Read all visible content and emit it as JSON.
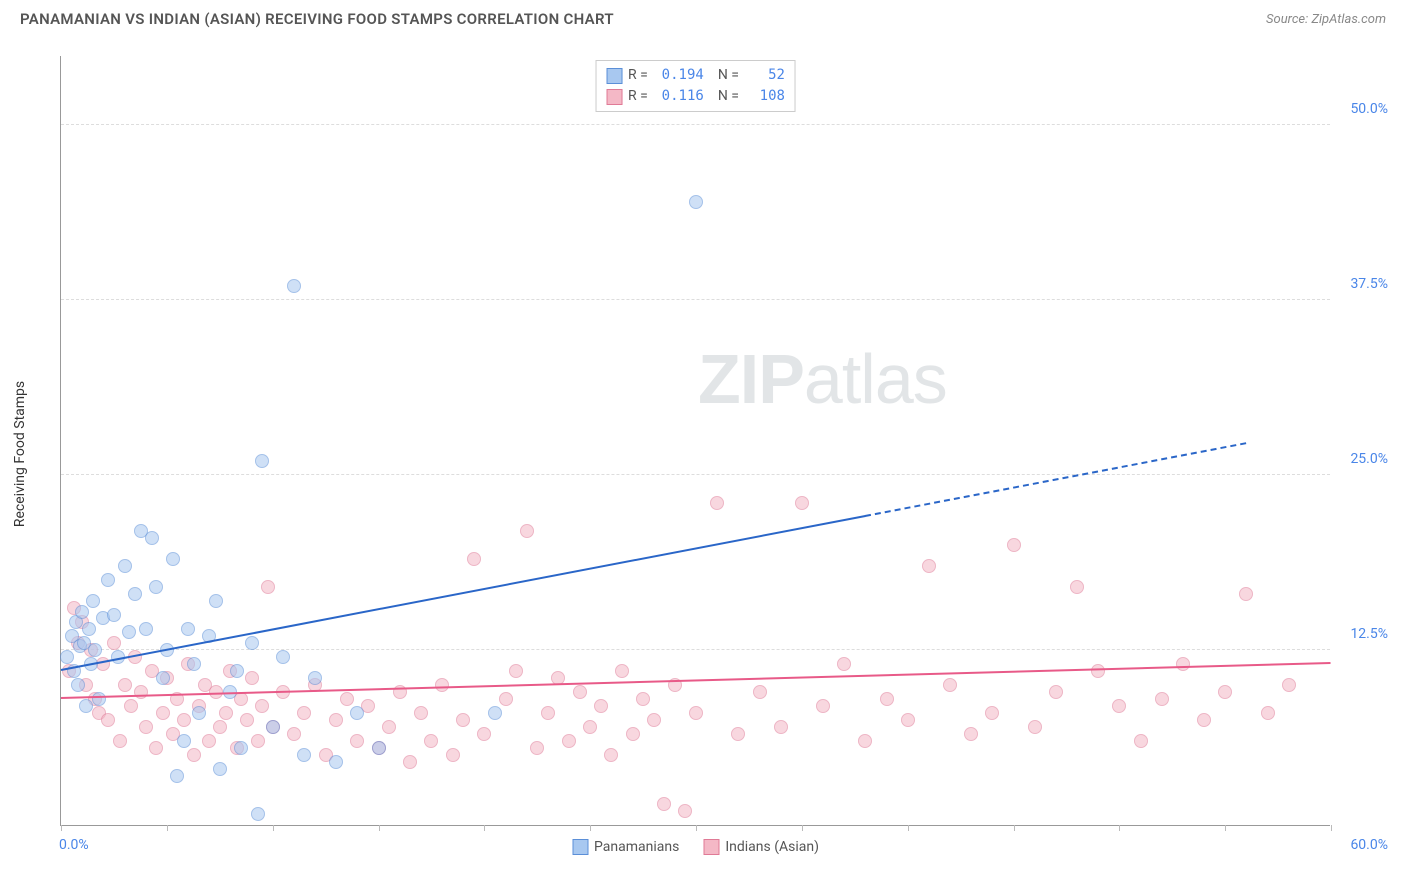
{
  "header": {
    "title": "PANAMANIAN VS INDIAN (ASIAN) RECEIVING FOOD STAMPS CORRELATION CHART",
    "source_prefix": "Source: ",
    "source_name": "ZipAtlas.com"
  },
  "chart": {
    "type": "scatter",
    "ylabel": "Receiving Food Stamps",
    "xlim": [
      0,
      60
    ],
    "ylim": [
      0,
      55
    ],
    "x_ticks": [
      0,
      5,
      10,
      15,
      20,
      25,
      30,
      35,
      40,
      45,
      50,
      55,
      60
    ],
    "y_grid": [
      12.5,
      25.0,
      37.5,
      50.0
    ],
    "y_tick_labels": [
      "12.5%",
      "25.0%",
      "37.5%",
      "50.0%"
    ],
    "x_origin_label": "0.0%",
    "x_max_label": "60.0%",
    "background_color": "#ffffff",
    "grid_color": "#dddddd",
    "axis_color": "#999999",
    "tick_label_color": "#4a86e8",
    "point_radius": 7,
    "point_opacity": 0.55,
    "watermark": {
      "z": "ZIP",
      "rest": "atlas",
      "color": "rgba(140,150,160,0.25)"
    },
    "series": [
      {
        "name": "Panamanians",
        "fill": "#a8c8f0",
        "stroke": "#5b8fd8",
        "trend_color": "#2a66c8",
        "R": "0.194",
        "N": "52",
        "trend": {
          "x1": 0,
          "y1": 11.0,
          "x2": 38,
          "y2": 22.0
        },
        "trend_ext": {
          "x1": 38,
          "y1": 22.0,
          "x2": 56,
          "y2": 27.2
        },
        "points": [
          [
            0.3,
            12.0
          ],
          [
            0.5,
            13.5
          ],
          [
            0.6,
            11.0
          ],
          [
            0.7,
            14.5
          ],
          [
            0.8,
            10.0
          ],
          [
            0.9,
            12.8
          ],
          [
            1.0,
            15.2
          ],
          [
            1.1,
            13.0
          ],
          [
            1.2,
            8.5
          ],
          [
            1.3,
            14.0
          ],
          [
            1.4,
            11.5
          ],
          [
            1.5,
            16.0
          ],
          [
            1.6,
            12.5
          ],
          [
            1.8,
            9.0
          ],
          [
            2.0,
            14.8
          ],
          [
            2.2,
            17.5
          ],
          [
            2.5,
            15.0
          ],
          [
            2.7,
            12.0
          ],
          [
            3.0,
            18.5
          ],
          [
            3.2,
            13.8
          ],
          [
            3.5,
            16.5
          ],
          [
            3.8,
            21.0
          ],
          [
            4.0,
            14.0
          ],
          [
            4.3,
            20.5
          ],
          [
            4.5,
            17.0
          ],
          [
            4.8,
            10.5
          ],
          [
            5.0,
            12.5
          ],
          [
            5.3,
            19.0
          ],
          [
            5.5,
            3.5
          ],
          [
            5.8,
            6.0
          ],
          [
            6.0,
            14.0
          ],
          [
            6.3,
            11.5
          ],
          [
            6.5,
            8.0
          ],
          [
            7.0,
            13.5
          ],
          [
            7.3,
            16.0
          ],
          [
            7.5,
            4.0
          ],
          [
            8.0,
            9.5
          ],
          [
            8.3,
            11.0
          ],
          [
            8.5,
            5.5
          ],
          [
            9.0,
            13.0
          ],
          [
            9.3,
            0.8
          ],
          [
            9.5,
            26.0
          ],
          [
            10.0,
            7.0
          ],
          [
            10.5,
            12.0
          ],
          [
            11.0,
            38.5
          ],
          [
            11.5,
            5.0
          ],
          [
            12.0,
            10.5
          ],
          [
            13.0,
            4.5
          ],
          [
            14.0,
            8.0
          ],
          [
            15.0,
            5.5
          ],
          [
            20.5,
            8.0
          ],
          [
            30.0,
            44.5
          ]
        ]
      },
      {
        "name": "Indians (Asian)",
        "fill": "#f4b8c6",
        "stroke": "#e07a96",
        "trend_color": "#e85a88",
        "R": "0.116",
        "N": "108",
        "trend": {
          "x1": 0,
          "y1": 9.0,
          "x2": 60,
          "y2": 11.5
        },
        "trend_ext": null,
        "points": [
          [
            0.4,
            11.0
          ],
          [
            0.6,
            15.5
          ],
          [
            0.8,
            13.0
          ],
          [
            1.0,
            14.5
          ],
          [
            1.2,
            10.0
          ],
          [
            1.4,
            12.5
          ],
          [
            1.6,
            9.0
          ],
          [
            1.8,
            8.0
          ],
          [
            2.0,
            11.5
          ],
          [
            2.2,
            7.5
          ],
          [
            2.5,
            13.0
          ],
          [
            2.8,
            6.0
          ],
          [
            3.0,
            10.0
          ],
          [
            3.3,
            8.5
          ],
          [
            3.5,
            12.0
          ],
          [
            3.8,
            9.5
          ],
          [
            4.0,
            7.0
          ],
          [
            4.3,
            11.0
          ],
          [
            4.5,
            5.5
          ],
          [
            4.8,
            8.0
          ],
          [
            5.0,
            10.5
          ],
          [
            5.3,
            6.5
          ],
          [
            5.5,
            9.0
          ],
          [
            5.8,
            7.5
          ],
          [
            6.0,
            11.5
          ],
          [
            6.3,
            5.0
          ],
          [
            6.5,
            8.5
          ],
          [
            6.8,
            10.0
          ],
          [
            7.0,
            6.0
          ],
          [
            7.3,
            9.5
          ],
          [
            7.5,
            7.0
          ],
          [
            7.8,
            8.0
          ],
          [
            8.0,
            11.0
          ],
          [
            8.3,
            5.5
          ],
          [
            8.5,
            9.0
          ],
          [
            8.8,
            7.5
          ],
          [
            9.0,
            10.5
          ],
          [
            9.3,
            6.0
          ],
          [
            9.5,
            8.5
          ],
          [
            9.8,
            17.0
          ],
          [
            10.0,
            7.0
          ],
          [
            10.5,
            9.5
          ],
          [
            11.0,
            6.5
          ],
          [
            11.5,
            8.0
          ],
          [
            12.0,
            10.0
          ],
          [
            12.5,
            5.0
          ],
          [
            13.0,
            7.5
          ],
          [
            13.5,
            9.0
          ],
          [
            14.0,
            6.0
          ],
          [
            14.5,
            8.5
          ],
          [
            15.0,
            5.5
          ],
          [
            15.5,
            7.0
          ],
          [
            16.0,
            9.5
          ],
          [
            16.5,
            4.5
          ],
          [
            17.0,
            8.0
          ],
          [
            17.5,
            6.0
          ],
          [
            18.0,
            10.0
          ],
          [
            18.5,
            5.0
          ],
          [
            19.0,
            7.5
          ],
          [
            19.5,
            19.0
          ],
          [
            20.0,
            6.5
          ],
          [
            21.0,
            9.0
          ],
          [
            21.5,
            11.0
          ],
          [
            22.0,
            21.0
          ],
          [
            22.5,
            5.5
          ],
          [
            23.0,
            8.0
          ],
          [
            23.5,
            10.5
          ],
          [
            24.0,
            6.0
          ],
          [
            24.5,
            9.5
          ],
          [
            25.0,
            7.0
          ],
          [
            25.5,
            8.5
          ],
          [
            26.0,
            5.0
          ],
          [
            26.5,
            11.0
          ],
          [
            27.0,
            6.5
          ],
          [
            27.5,
            9.0
          ],
          [
            28.0,
            7.5
          ],
          [
            28.5,
            1.5
          ],
          [
            29.0,
            10.0
          ],
          [
            29.5,
            1.0
          ],
          [
            30.0,
            8.0
          ],
          [
            31.0,
            23.0
          ],
          [
            32.0,
            6.5
          ],
          [
            33.0,
            9.5
          ],
          [
            34.0,
            7.0
          ],
          [
            35.0,
            23.0
          ],
          [
            36.0,
            8.5
          ],
          [
            37.0,
            11.5
          ],
          [
            38.0,
            6.0
          ],
          [
            39.0,
            9.0
          ],
          [
            40.0,
            7.5
          ],
          [
            41.0,
            18.5
          ],
          [
            42.0,
            10.0
          ],
          [
            43.0,
            6.5
          ],
          [
            44.0,
            8.0
          ],
          [
            45.0,
            20.0
          ],
          [
            46.0,
            7.0
          ],
          [
            47.0,
            9.5
          ],
          [
            48.0,
            17.0
          ],
          [
            49.0,
            11.0
          ],
          [
            50.0,
            8.5
          ],
          [
            51.0,
            6.0
          ],
          [
            52.0,
            9.0
          ],
          [
            53.0,
            11.5
          ],
          [
            54.0,
            7.5
          ],
          [
            55.0,
            9.5
          ],
          [
            56.0,
            16.5
          ],
          [
            57.0,
            8.0
          ],
          [
            58.0,
            10.0
          ]
        ]
      }
    ],
    "legend_bottom": [
      "Panamanians",
      "Indians (Asian)"
    ]
  }
}
